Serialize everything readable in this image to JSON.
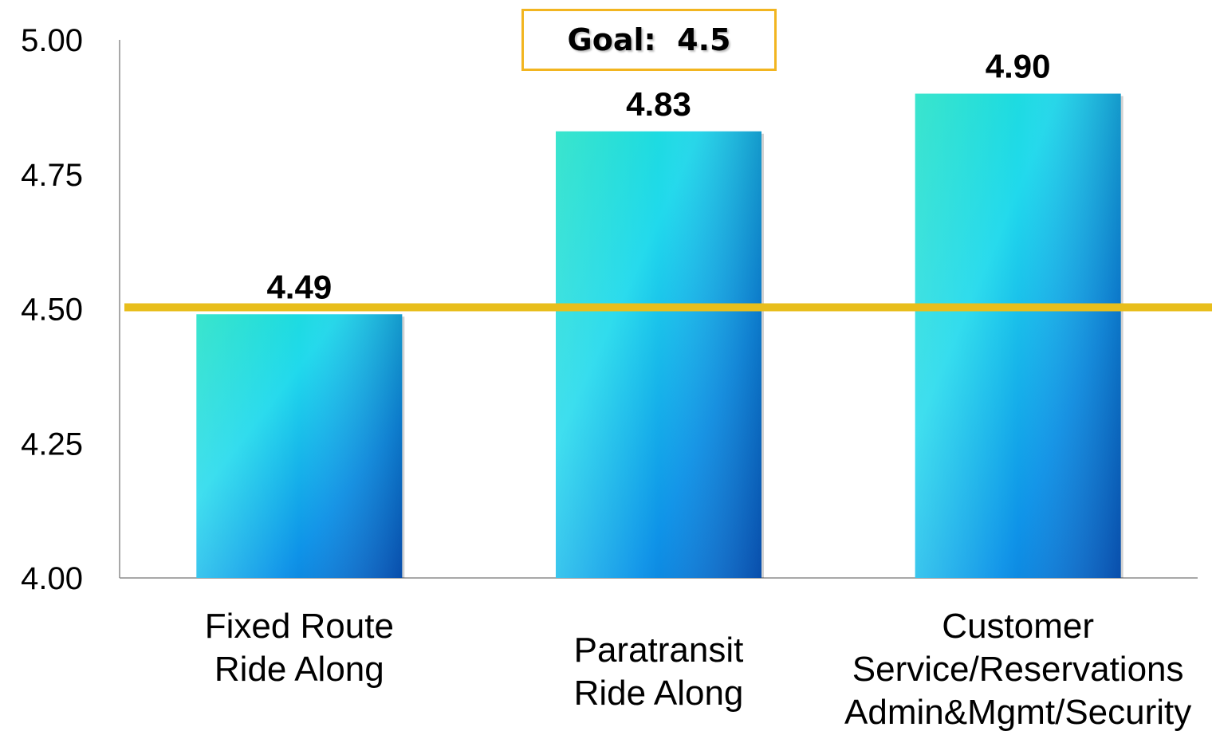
{
  "chart_data": {
    "type": "bar",
    "categories": [
      [
        "Fixed Route",
        "Ride Along"
      ],
      [
        "Paratransit",
        "Ride Along"
      ],
      [
        "Customer",
        "Service/Reservations",
        "Admin&Mgmt/Security"
      ]
    ],
    "values": [
      4.49,
      4.83,
      4.9
    ],
    "value_labels": [
      "4.49",
      "4.83",
      "4.90"
    ],
    "ylim": [
      4.0,
      5.0
    ],
    "yticks": [
      "4.00",
      "4.25",
      "4.50",
      "4.75",
      "5.00"
    ],
    "ytick_values": [
      4.0,
      4.25,
      4.5,
      4.75,
      5.0
    ],
    "goal": {
      "value": 4.5,
      "label": "Goal:  4.5"
    },
    "grid": false,
    "legend": "none"
  },
  "colors": {
    "bar_top_left": "#17E0C4",
    "bar_mid": "#1FD8EE",
    "bar_bottom_right": "#0A6FCF",
    "goal_line": "#E8BE1C",
    "goal_box_border": "#F2B520",
    "axis": "#8C8C8C"
  }
}
